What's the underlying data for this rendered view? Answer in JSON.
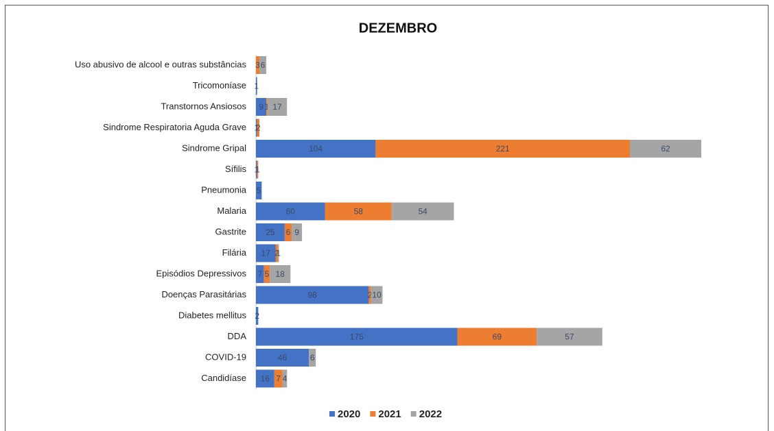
{
  "chart_data": {
    "type": "stacked-barh",
    "title": "DEZEMBRO",
    "categories": [
      "Uso abusivo de alcool e outras substâncias",
      "Tricomoníase",
      "Transtornos Ansiosos",
      "Sindrome Respiratoria Aguda Grave",
      "Sindrome Gripal",
      "Sífilis",
      "Pneumonia",
      "Malaria",
      "Gastrite",
      "Filária",
      "Episódios Depressivos",
      "Doenças Parasitárias",
      "Diabetes mellitus",
      "DDA",
      "COVID-19",
      "Candidíase"
    ],
    "series": [
      {
        "name": "2020",
        "color": "#4472c4",
        "values": [
          null,
          1,
          9,
          1,
          104,
          1,
          5,
          60,
          25,
          17,
          7,
          98,
          2,
          175,
          46,
          16
        ]
      },
      {
        "name": "2021",
        "color": "#ed7d31",
        "values": [
          3,
          null,
          1,
          2,
          221,
          1,
          null,
          58,
          6,
          2,
          5,
          2,
          null,
          69,
          null,
          7
        ]
      },
      {
        "name": "2022",
        "color": "#a5a5a5",
        "values": [
          6,
          null,
          17,
          null,
          62,
          null,
          null,
          54,
          9,
          1,
          18,
          10,
          null,
          57,
          6,
          4
        ]
      }
    ],
    "legend": "bottom"
  }
}
